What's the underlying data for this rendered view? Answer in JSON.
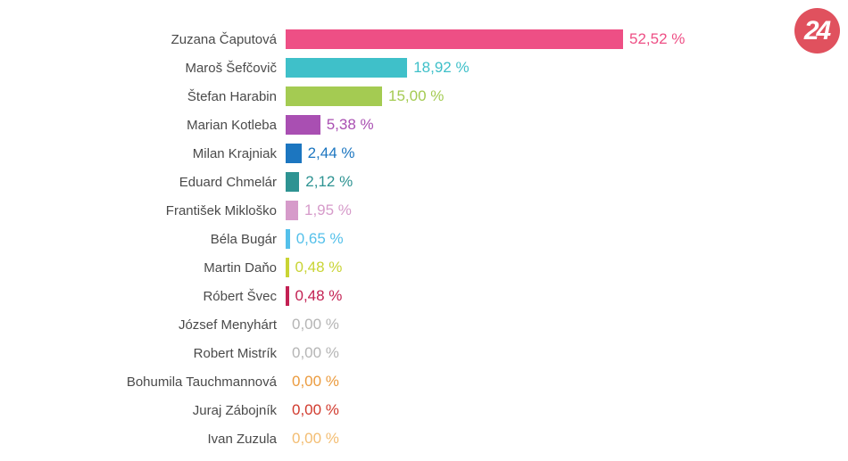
{
  "logo": {
    "label": "24"
  },
  "colors": {
    "background": "#ffffff",
    "logo_bg": "#e0515e",
    "logo_text": "#ffffff",
    "name_text": "#4a4a4a"
  },
  "chart_data": {
    "type": "bar",
    "orientation": "horizontal",
    "title": "",
    "xlabel": "",
    "ylabel": "",
    "xlim": [
      0,
      52.52
    ],
    "grid": false,
    "legend": false,
    "value_label_position": "end-of-bar",
    "categories": [
      "Zuzana Čaputová",
      "Maroš Šefčovič",
      "Štefan Harabin",
      "Marian Kotleba",
      "Milan Krajniak",
      "Eduard Chmelár",
      "František Mikloško",
      "Béla Bugár",
      "Martin Daňo",
      "Róbert Švec",
      "József Menyhárt",
      "Robert Mistrík",
      "Bohumila Tauchmannová",
      "Juraj Zábojník",
      "Ivan Zuzula"
    ],
    "values": [
      52.52,
      18.92,
      15.0,
      5.38,
      2.44,
      2.12,
      1.95,
      0.65,
      0.48,
      0.48,
      0,
      0,
      0,
      0,
      0
    ],
    "value_labels": [
      "52,52 %",
      "18,92 %",
      "15,00 %",
      "5,38 %",
      "2,44 %",
      "2,12 %",
      "1,95 %",
      "0,65 %",
      "0,48 %",
      "0,48 %",
      "0,00 %",
      "0,00 %",
      "0,00 %",
      "0,00 %",
      "0,00 %"
    ],
    "bar_colors": [
      "#ee4f85",
      "#3fc0c9",
      "#a4cb52",
      "#a94fb2",
      "#1c76c0",
      "#2e9392",
      "#d69bca",
      "#54c0ea",
      "#c9d434",
      "#c32153",
      "#b5b5b5",
      "#b5b5b5",
      "#eb9b3e",
      "#d13a2d",
      "#f3bd72"
    ]
  }
}
